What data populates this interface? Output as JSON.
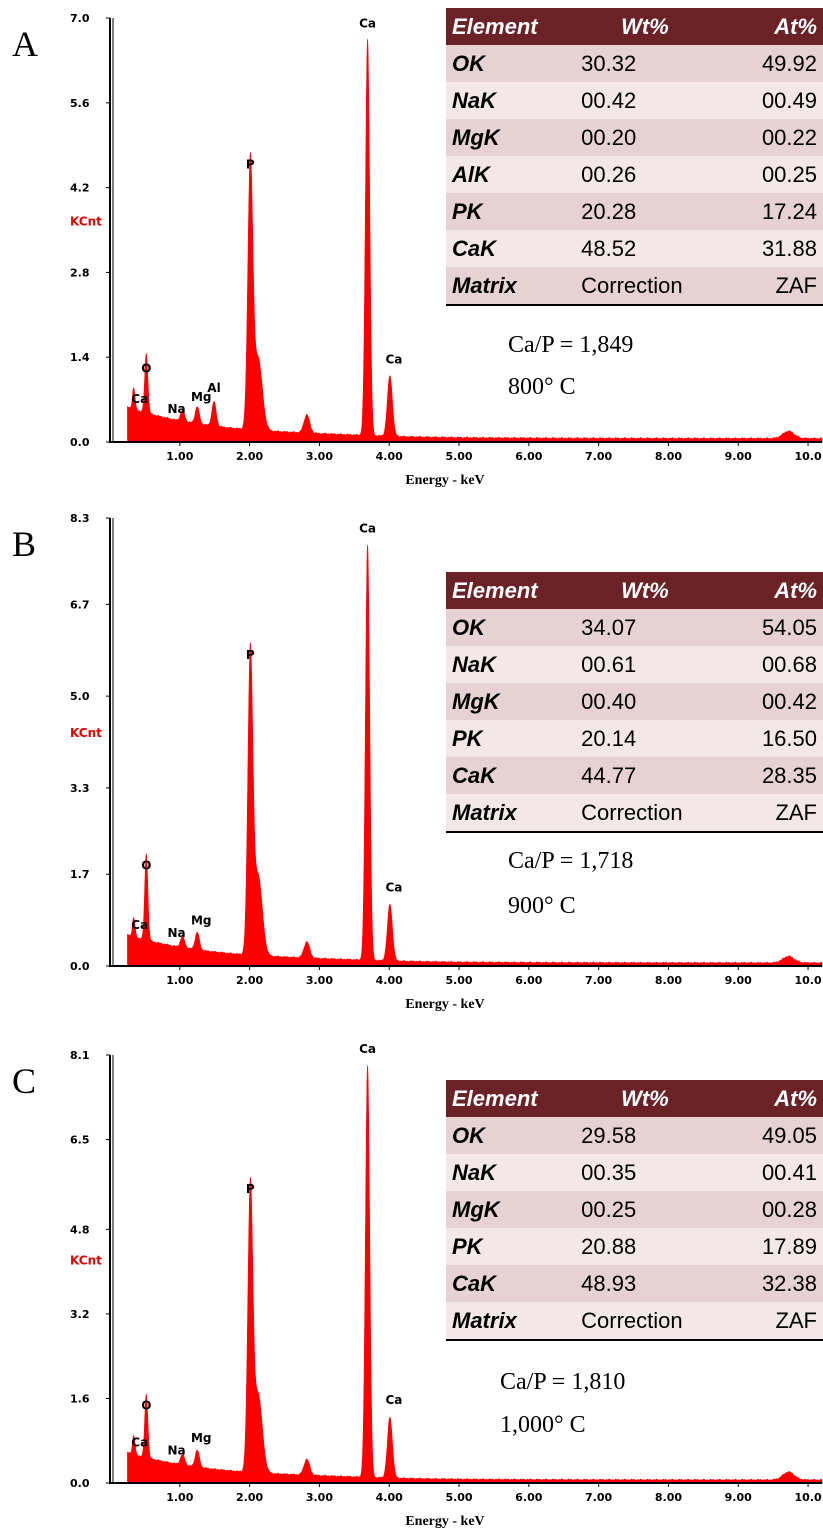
{
  "chart_data": [
    {
      "type": "area",
      "panel": "A",
      "ylabel": "KCnt",
      "xlabel": "Energy - keV",
      "yticks": [
        "0.0",
        "1.4",
        "2.8",
        "4.2",
        "5.6",
        "7.0"
      ],
      "xticks": [
        "1.00",
        "2.00",
        "3.00",
        "4.00",
        "5.00",
        "6.00",
        "7.00",
        "8.00",
        "9.00",
        "10.0"
      ],
      "xlim": [
        0.0,
        10.2
      ],
      "ylim": [
        0.0,
        7.0
      ],
      "peak_labels": [
        {
          "text": "Ca",
          "x": 0.34,
          "y": 0.35
        },
        {
          "text": "O",
          "x": 0.52,
          "y": 0.98
        },
        {
          "text": "Na",
          "x": 1.04,
          "y": 0.18
        },
        {
          "text": "Mg",
          "x": 1.25,
          "y": 0.28
        },
        {
          "text": "Al",
          "x": 1.49,
          "y": 0.4
        },
        {
          "text": "P",
          "x": 2.01,
          "y": 4.35
        },
        {
          "text": "Ca",
          "x": 3.69,
          "y": 6.55
        },
        {
          "text": "Ca",
          "x": 4.01,
          "y": 1.0
        }
      ],
      "spectrum": [
        {
          "x": 0.34,
          "y": 0.35,
          "w": 0.018
        },
        {
          "x": 0.52,
          "y": 0.98,
          "w": 0.022
        },
        {
          "x": 1.04,
          "y": 0.18,
          "w": 0.03
        },
        {
          "x": 1.25,
          "y": 0.28,
          "w": 0.03
        },
        {
          "x": 1.49,
          "y": 0.4,
          "w": 0.03
        },
        {
          "x": 2.01,
          "y": 4.35,
          "w": 0.035
        },
        {
          "x": 2.12,
          "y": 1.2,
          "w": 0.06
        },
        {
          "x": 2.82,
          "y": 0.3,
          "w": 0.04
        },
        {
          "x": 3.69,
          "y": 6.55,
          "w": 0.03
        },
        {
          "x": 4.01,
          "y": 1.0,
          "w": 0.035
        },
        {
          "x": 9.72,
          "y": 0.12,
          "w": 0.08
        }
      ],
      "table": {
        "header": [
          "Element",
          "Wt%",
          "At%"
        ],
        "rows": [
          [
            "OK",
            "30.32",
            "49.92"
          ],
          [
            "NaK",
            "00.42",
            "00.49"
          ],
          [
            "MgK",
            "00.20",
            "00.22"
          ],
          [
            "AlK",
            "00.26",
            "00.25"
          ],
          [
            "PK",
            "20.28",
            "17.24"
          ],
          [
            "CaK",
            "48.52",
            "31.88"
          ],
          [
            "Matrix",
            "Correction",
            "ZAF"
          ]
        ]
      },
      "ratio": "Ca/P =  1,849",
      "temperature": "800°  C"
    },
    {
      "type": "area",
      "panel": "B",
      "ylabel": "KCnt",
      "xlabel": "Energy - keV",
      "yticks": [
        "0.0",
        "1.7",
        "3.3",
        "5.0",
        "6.7",
        "8.3"
      ],
      "xticks": [
        "1.00",
        "2.00",
        "3.00",
        "4.00",
        "5.00",
        "6.00",
        "7.00",
        "8.00",
        "9.00",
        "10.0"
      ],
      "xlim": [
        0.0,
        10.2
      ],
      "ylim": [
        0.0,
        8.3
      ],
      "peak_labels": [
        {
          "text": "Ca",
          "x": 0.34,
          "y": 0.35
        },
        {
          "text": "O",
          "x": 0.52,
          "y": 1.6
        },
        {
          "text": "Na",
          "x": 1.04,
          "y": 0.2
        },
        {
          "text": "Mg",
          "x": 1.25,
          "y": 0.32
        },
        {
          "text": "P",
          "x": 2.01,
          "y": 5.5
        },
        {
          "text": "Ca",
          "x": 3.69,
          "y": 7.7
        },
        {
          "text": "Ca",
          "x": 4.01,
          "y": 1.05
        }
      ],
      "spectrum": [
        {
          "x": 0.34,
          "y": 0.35,
          "w": 0.018
        },
        {
          "x": 0.52,
          "y": 1.6,
          "w": 0.022
        },
        {
          "x": 1.04,
          "y": 0.2,
          "w": 0.03
        },
        {
          "x": 1.25,
          "y": 0.32,
          "w": 0.03
        },
        {
          "x": 2.01,
          "y": 5.5,
          "w": 0.035
        },
        {
          "x": 2.12,
          "y": 1.5,
          "w": 0.06
        },
        {
          "x": 2.82,
          "y": 0.3,
          "w": 0.04
        },
        {
          "x": 3.69,
          "y": 7.7,
          "w": 0.03
        },
        {
          "x": 4.01,
          "y": 1.05,
          "w": 0.035
        },
        {
          "x": 9.72,
          "y": 0.12,
          "w": 0.08
        }
      ],
      "table": {
        "header": [
          "Element",
          "Wt%",
          "At%"
        ],
        "rows": [
          [
            "OK",
            "34.07",
            "54.05"
          ],
          [
            "NaK",
            "00.61",
            "00.68"
          ],
          [
            "MgK",
            "00.40",
            "00.42"
          ],
          [
            "PK",
            "20.14",
            "16.50"
          ],
          [
            "CaK",
            "44.77",
            "28.35"
          ],
          [
            "Matrix",
            "Correction",
            "ZAF"
          ]
        ]
      },
      "ratio": "Ca/P =  1,718",
      "temperature": "900°  C"
    },
    {
      "type": "area",
      "panel": "C",
      "ylabel": "KCnt",
      "xlabel": "Energy - keV",
      "yticks": [
        "0.0",
        "1.6",
        "3.2",
        "4.8",
        "6.5",
        "8.1"
      ],
      "xticks": [
        "1.00",
        "2.00",
        "3.00",
        "4.00",
        "5.00",
        "6.00",
        "7.00",
        "8.00",
        "9.00",
        "10.0"
      ],
      "xlim": [
        0.0,
        10.2
      ],
      "ylim": [
        0.0,
        8.1
      ],
      "peak_labels": [
        {
          "text": "Ca",
          "x": 0.34,
          "y": 0.35
        },
        {
          "text": "O",
          "x": 0.52,
          "y": 1.2
        },
        {
          "text": "Na",
          "x": 1.04,
          "y": 0.2
        },
        {
          "text": "Mg",
          "x": 1.25,
          "y": 0.32
        },
        {
          "text": "P",
          "x": 2.01,
          "y": 5.3
        },
        {
          "text": "Ca",
          "x": 3.69,
          "y": 7.8
        },
        {
          "text": "Ca",
          "x": 4.01,
          "y": 1.15
        }
      ],
      "spectrum": [
        {
          "x": 0.34,
          "y": 0.35,
          "w": 0.018
        },
        {
          "x": 0.52,
          "y": 1.2,
          "w": 0.022
        },
        {
          "x": 1.04,
          "y": 0.2,
          "w": 0.03
        },
        {
          "x": 1.25,
          "y": 0.32,
          "w": 0.03
        },
        {
          "x": 2.01,
          "y": 5.3,
          "w": 0.035
        },
        {
          "x": 2.12,
          "y": 1.5,
          "w": 0.06
        },
        {
          "x": 2.82,
          "y": 0.3,
          "w": 0.04
        },
        {
          "x": 3.69,
          "y": 7.8,
          "w": 0.03
        },
        {
          "x": 4.01,
          "y": 1.15,
          "w": 0.035
        },
        {
          "x": 9.72,
          "y": 0.15,
          "w": 0.08
        }
      ],
      "table": {
        "header": [
          "Element",
          "Wt%",
          "At%"
        ],
        "rows": [
          [
            "OK",
            "29.58",
            "49.05"
          ],
          [
            "NaK",
            "00.35",
            "00.41"
          ],
          [
            "MgK",
            "00.25",
            "00.28"
          ],
          [
            "PK",
            "20.88",
            "17.89"
          ],
          [
            "CaK",
            "48.93",
            "32.38"
          ],
          [
            "Matrix",
            "Correction",
            "ZAF"
          ]
        ]
      },
      "ratio": "Ca/P =  1,810",
      "temperature": "1,000°  C"
    }
  ],
  "colors": {
    "spectrum": "#ff0000",
    "ylabel": "#e00000",
    "table_header": "#6b2226",
    "table_row_odd": "#e7d2d3",
    "table_row_even": "#f3e7e8"
  }
}
